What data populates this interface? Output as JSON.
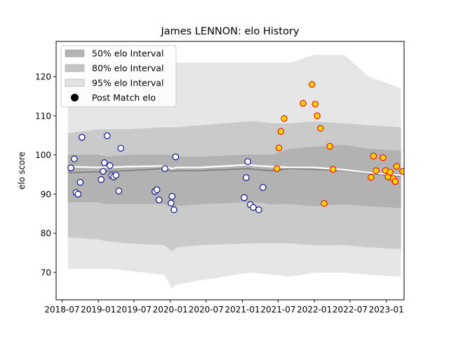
{
  "chart_data": {
    "type": "scatter",
    "title": "James LENNON: elo History",
    "xlabel": "",
    "ylabel": "elo score",
    "x_ticks": [
      "2018-07",
      "2019-01",
      "2019-07",
      "2020-01",
      "2020-07",
      "2021-01",
      "2021-07",
      "2022-01",
      "2022-07",
      "2023-01"
    ],
    "y_ticks": [
      70,
      80,
      90,
      100,
      110,
      120
    ],
    "xlim": [
      "2018-06-01",
      "2023-04-01"
    ],
    "ylim": [
      63,
      129
    ],
    "legend": {
      "placement": "top-left",
      "entries": [
        {
          "label": "50% elo Interval",
          "color": "#b3b3b3",
          "kind": "patch"
        },
        {
          "label": "80% elo Interval",
          "color": "#c4c4c4",
          "kind": "patch"
        },
        {
          "label": "95% elo Interval",
          "color": "#e2e2e2",
          "kind": "patch"
        },
        {
          "label": "Post Match elo",
          "color": "#000000",
          "kind": "marker"
        }
      ]
    },
    "colors": {
      "band50": "#a9a9a9",
      "band80": "#c6c6c6",
      "band95": "#e3e3e3",
      "mean_line": "#ffffff",
      "median_line": "#7a7a7a",
      "early_marker_edge": "#00008b",
      "early_marker_fill": "#ffffff",
      "late_marker_edge": "#ff0000",
      "late_marker_fill": "#ffd700"
    },
    "bands": {
      "x": [
        "2018-08-01",
        "2019-01-01",
        "2019-02-15",
        "2019-06-01",
        "2019-12-01",
        "2020-01-10",
        "2020-02-01",
        "2020-06-01",
        "2021-02-01",
        "2021-03-01",
        "2021-06-01",
        "2021-09-01",
        "2022-01-01",
        "2022-06-01",
        "2022-10-01",
        "2023-03-15"
      ],
      "p95_upper": [
        120.5,
        121.5,
        122,
        123,
        123.5,
        123.5,
        123.5,
        123.5,
        123.5,
        123.5,
        123.5,
        123.5,
        125.5,
        125.5,
        120,
        117
      ],
      "p95_lower": [
        71,
        71,
        71,
        70.5,
        69.5,
        66,
        67,
        68,
        70,
        70,
        69.5,
        69,
        70,
        70,
        69.5,
        69
      ],
      "p80_upper": [
        105.5,
        106.5,
        106.5,
        106.5,
        107,
        107,
        107,
        107.5,
        108.5,
        108.5,
        108,
        108,
        108.5,
        108,
        107.5,
        107
      ],
      "p80_lower": [
        79,
        78.5,
        78,
        77.5,
        77,
        75.5,
        76.5,
        77,
        77.5,
        77.5,
        77.5,
        77.5,
        77,
        77,
        76.5,
        76
      ],
      "p50_upper": [
        100,
        100,
        99.5,
        100,
        100,
        100,
        99.5,
        99.5,
        100,
        100,
        100,
        101.5,
        102,
        102.5,
        101.5,
        101
      ],
      "p50_lower": [
        88,
        88,
        87.5,
        87.5,
        87.5,
        87,
        87,
        87.5,
        88,
        88,
        87.5,
        87.5,
        87,
        87.5,
        87,
        86.5
      ],
      "mean": [
        97,
        96.8,
        96.8,
        97,
        97.2,
        96.5,
        96.8,
        96.8,
        97.5,
        97.3,
        97,
        96.8,
        96.8,
        96.2,
        95.5,
        94.8
      ],
      "median": [
        95.5,
        95.7,
        95.8,
        96,
        96.5,
        95.8,
        96,
        96,
        96.5,
        96.3,
        96,
        96.5,
        96.3,
        96,
        95.3,
        94.5
      ]
    },
    "series": [
      {
        "group": "early",
        "points": [
          {
            "x": "2018-08-15",
            "y": 96.7
          },
          {
            "x": "2018-09-01",
            "y": 99.0
          },
          {
            "x": "2018-09-10",
            "y": 90.4
          },
          {
            "x": "2018-09-20",
            "y": 90.0
          },
          {
            "x": "2018-10-01",
            "y": 93.0
          },
          {
            "x": "2018-10-10",
            "y": 104.5
          },
          {
            "x": "2019-01-15",
            "y": 93.7
          },
          {
            "x": "2019-01-25",
            "y": 95.8
          },
          {
            "x": "2019-02-01",
            "y": 98.0
          },
          {
            "x": "2019-02-15",
            "y": 104.9
          },
          {
            "x": "2019-03-01",
            "y": 97.3
          },
          {
            "x": "2019-03-10",
            "y": 94.7
          },
          {
            "x": "2019-03-20",
            "y": 94.4
          },
          {
            "x": "2019-04-01",
            "y": 94.8
          },
          {
            "x": "2019-04-15",
            "y": 90.8
          },
          {
            "x": "2019-04-25",
            "y": 101.7
          },
          {
            "x": "2019-10-15",
            "y": 90.7
          },
          {
            "x": "2019-10-25",
            "y": 91.1
          },
          {
            "x": "2019-11-05",
            "y": 88.5
          },
          {
            "x": "2019-12-05",
            "y": 96.5
          },
          {
            "x": "2020-01-05",
            "y": 87.7
          },
          {
            "x": "2020-01-10",
            "y": 89.4
          },
          {
            "x": "2020-01-20",
            "y": 86.0
          },
          {
            "x": "2020-01-28",
            "y": 99.5
          },
          {
            "x": "2021-01-10",
            "y": 89.1
          },
          {
            "x": "2021-01-20",
            "y": 94.2
          },
          {
            "x": "2021-01-28",
            "y": 98.3
          },
          {
            "x": "2021-02-10",
            "y": 87.3
          },
          {
            "x": "2021-02-25",
            "y": 86.6
          },
          {
            "x": "2021-03-25",
            "y": 86.0
          },
          {
            "x": "2021-04-15",
            "y": 91.7
          }
        ]
      },
      {
        "group": "late",
        "points": [
          {
            "x": "2021-06-25",
            "y": 96.5
          },
          {
            "x": "2021-07-05",
            "y": 101.8
          },
          {
            "x": "2021-07-15",
            "y": 106.0
          },
          {
            "x": "2021-08-01",
            "y": 109.3
          },
          {
            "x": "2021-11-05",
            "y": 113.2
          },
          {
            "x": "2021-12-20",
            "y": 118.0
          },
          {
            "x": "2022-01-05",
            "y": 113.0
          },
          {
            "x": "2022-01-15",
            "y": 110.0
          },
          {
            "x": "2022-02-01",
            "y": 106.8
          },
          {
            "x": "2022-02-20",
            "y": 87.6
          },
          {
            "x": "2022-03-20",
            "y": 102.2
          },
          {
            "x": "2022-04-05",
            "y": 96.3
          },
          {
            "x": "2022-10-15",
            "y": 94.3
          },
          {
            "x": "2022-10-28",
            "y": 99.7
          },
          {
            "x": "2022-11-10",
            "y": 96.0
          },
          {
            "x": "2022-12-15",
            "y": 99.3
          },
          {
            "x": "2022-12-28",
            "y": 96.0
          },
          {
            "x": "2023-01-10",
            "y": 94.4
          },
          {
            "x": "2023-01-20",
            "y": 95.6
          },
          {
            "x": "2023-02-05",
            "y": 94.0
          },
          {
            "x": "2023-02-15",
            "y": 93.2
          },
          {
            "x": "2023-02-22",
            "y": 97.1
          },
          {
            "x": "2023-03-25",
            "y": 95.8
          }
        ]
      }
    ]
  }
}
